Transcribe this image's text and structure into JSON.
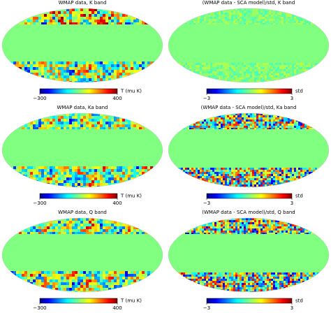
{
  "panels": [
    {
      "title": "WMAP data, K band",
      "colorbar": {
        "lim": [
          -300,
          400
        ],
        "ticks": [
          {
            "value": -300,
            "label": "−300"
          },
          400
        ],
        "label": "T (mu K)"
      }
    },
    {
      "title": "(WMAP data - SCA model)/std, K band",
      "colorbar": {
        "lim": [
          -3,
          3
        ],
        "ticks": [
          {
            "value": -3,
            "label": "−3"
          },
          3
        ],
        "label": "std"
      }
    },
    {
      "title": "WMAP data, Ka band",
      "colorbar": {
        "lim": [
          -300,
          400
        ],
        "ticks": [
          {
            "value": -300,
            "label": "−300"
          },
          400
        ],
        "label": "T (mu K)"
      }
    },
    {
      "title": "(WMAP data - SCA model)/std, Ka band",
      "colorbar": {
        "lim": [
          -3,
          3
        ],
        "ticks": [
          {
            "value": -3,
            "label": "−3"
          },
          3
        ],
        "label": "std"
      }
    },
    {
      "title": "WMAP data, Q band",
      "colorbar": {
        "lim": [
          -300,
          400
        ],
        "ticks": [
          {
            "value": -300,
            "label": "−300"
          },
          400
        ],
        "label": "T (mu K)"
      }
    },
    {
      "title": "(WMAP data - SCA model)/std, Q band",
      "colorbar": {
        "lim": [
          -3,
          3
        ],
        "ticks": [
          {
            "value": -3,
            "label": "−3"
          },
          3
        ],
        "label": "std"
      }
    }
  ]
}
